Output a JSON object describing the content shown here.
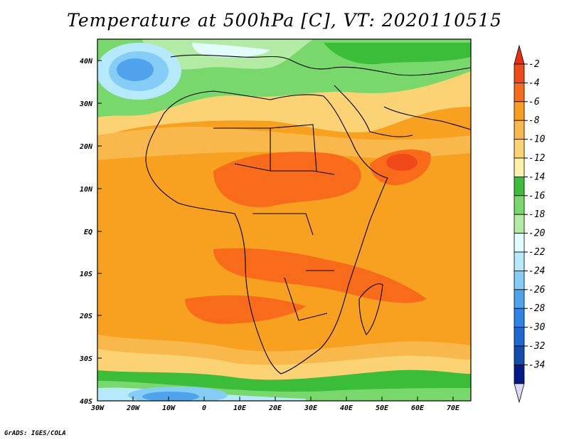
{
  "title": "Temperature at 500hPa [C], VT: 2020110515",
  "credit": "GrADS: IGES/COLA",
  "axes": {
    "lat_labels": [
      "40N",
      "30N",
      "20N",
      "10N",
      "EQ",
      "10S",
      "20S",
      "30S",
      "40S"
    ],
    "lon_labels": [
      "30W",
      "20W",
      "10W",
      "0",
      "10E",
      "20E",
      "30E",
      "40E",
      "50E",
      "60E",
      "70E"
    ]
  },
  "colorbar": {
    "labels": [
      "-2",
      "-4",
      "-6",
      "-8",
      "-10",
      "-12",
      "-14",
      "-16",
      "-18",
      "-20",
      "-22",
      "-24",
      "-26",
      "-28",
      "-30",
      "-32",
      "-34"
    ],
    "colors": [
      "#f0491a",
      "#f86b1a",
      "#f89d1e",
      "#f8b84c",
      "#fbd374",
      "#fdf0a8",
      "#3cbd3a",
      "#79d86b",
      "#b3eba4",
      "#e1fcfa",
      "#b5e9fb",
      "#85cdf7",
      "#4fa3ec",
      "#2d84e6",
      "#1c67d2",
      "#114cad",
      "#041a8c"
    ],
    "low_end_color": "#ddd8f6",
    "high_end_color": "#e83010"
  },
  "chart_data": {
    "type": "heatmap",
    "title": "Temperature at 500hPa [C], VT: 2020110515",
    "xlim": [
      "30W",
      "75E"
    ],
    "ylim": [
      "40S",
      "45N"
    ]
  }
}
